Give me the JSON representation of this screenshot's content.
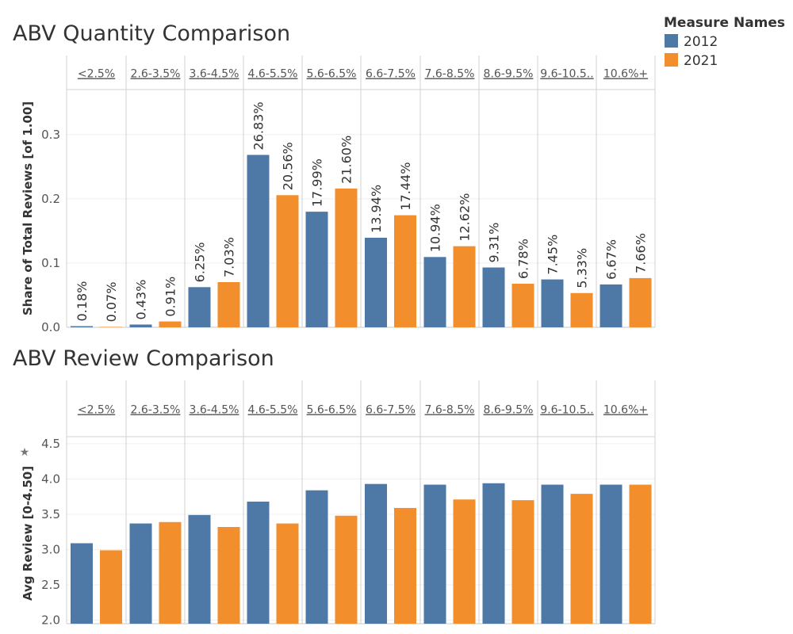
{
  "legend": {
    "title": "Measure Names",
    "items": [
      {
        "label": "2012",
        "color": "#4e79a7"
      },
      {
        "label": "2021",
        "color": "#f28e2b"
      }
    ]
  },
  "chart_data": [
    {
      "type": "bar",
      "title": "ABV Quantity Comparison",
      "ylabel": "Share of Total Reviews [of 1.00]",
      "ylim": [
        0,
        0.37
      ],
      "yticks": [
        "0.0",
        "0.1",
        "0.2",
        "0.3"
      ],
      "grid": true,
      "legend": "top-right",
      "categories": [
        "<2.5%",
        "2.6-3.5%",
        "3.6-4.5%",
        "4.6-5.5%",
        "5.6-6.5%",
        "6.6-7.5%",
        "7.6-8.5%",
        "8.6-9.5%",
        "9.6-10.5..",
        "10.6%+"
      ],
      "series": [
        {
          "name": "2012",
          "color": "#4e79a7",
          "values": [
            0.0018,
            0.0043,
            0.0625,
            0.2683,
            0.1799,
            0.1394,
            0.1094,
            0.0931,
            0.0745,
            0.0667
          ],
          "labels": [
            "0.18%",
            "0.43%",
            "6.25%",
            "26.83%",
            "17.99%",
            "13.94%",
            "10.94%",
            "9.31%",
            "7.45%",
            "6.67%"
          ]
        },
        {
          "name": "2021",
          "color": "#f28e2b",
          "values": [
            0.0007,
            0.0091,
            0.0703,
            0.2056,
            0.216,
            0.1744,
            0.1262,
            0.0678,
            0.0533,
            0.0766
          ],
          "labels": [
            "0.07%",
            "0.91%",
            "7.03%",
            "20.56%",
            "21.60%",
            "17.44%",
            "12.62%",
            "6.78%",
            "5.33%",
            "7.66%"
          ]
        }
      ]
    },
    {
      "type": "bar",
      "title": "ABV Review Comparison",
      "ylabel": "Avg Review  [0-4.50]",
      "ylim": [
        1.95,
        4.6
      ],
      "yticks": [
        "2.0",
        "2.5",
        "3.0",
        "3.5",
        "4.0",
        "4.5"
      ],
      "grid": true,
      "categories": [
        "<2.5%",
        "2.6-3.5%",
        "3.6-4.5%",
        "4.6-5.5%",
        "5.6-6.5%",
        "6.6-7.5%",
        "7.6-8.5%",
        "8.6-9.5%",
        "9.6-10.5..",
        "10.6%+"
      ],
      "series": [
        {
          "name": "2012",
          "color": "#4e79a7",
          "values": [
            3.09,
            3.37,
            3.49,
            3.68,
            3.84,
            3.93,
            3.92,
            3.94,
            3.92,
            3.92
          ]
        },
        {
          "name": "2021",
          "color": "#f28e2b",
          "values": [
            2.99,
            3.39,
            3.32,
            3.37,
            3.48,
            3.59,
            3.71,
            3.7,
            3.79,
            3.92
          ]
        }
      ]
    }
  ]
}
